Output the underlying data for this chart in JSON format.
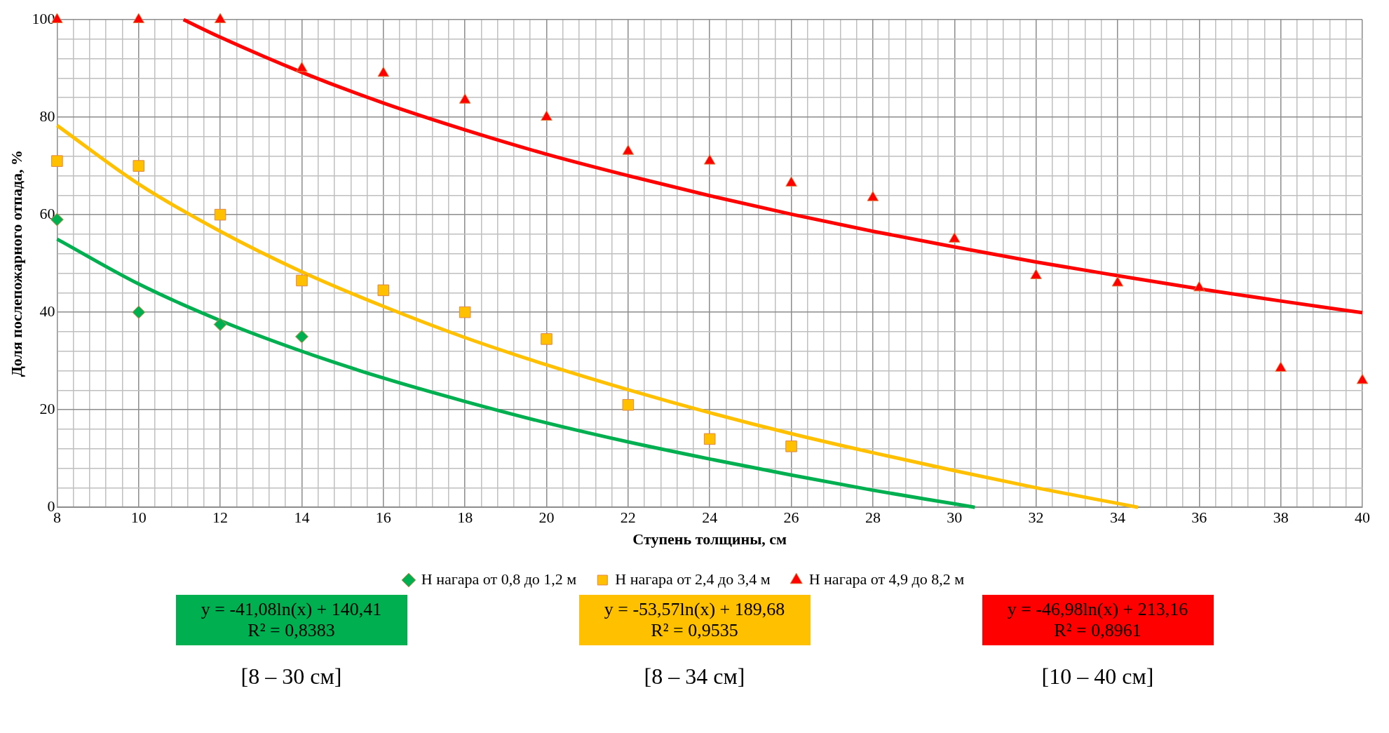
{
  "chart_data": {
    "type": "scatter",
    "xlabel": "Ступень толщины, см",
    "ylabel": "Доля послепожарного отпада, %",
    "xlim": [
      8,
      40
    ],
    "ylim": [
      0,
      100
    ],
    "xticks": [
      8,
      {
        "value": 8.4,
        "label": null
      },
      {
        "value": 8.8,
        "label": null
      },
      {
        "value": 9.2,
        "label": null
      },
      {
        "value": 9.6,
        "label": null
      },
      10,
      {
        "value": 10.4,
        "label": null
      },
      {
        "value": 10.8,
        "label": null
      },
      {
        "value": 11.2,
        "label": null
      },
      {
        "value": 11.6,
        "label": null
      },
      12,
      {
        "value": 12.4,
        "label": null
      },
      {
        "value": 12.8,
        "label": null
      },
      {
        "value": 13.2,
        "label": null
      },
      {
        "value": 13.6,
        "label": null
      },
      14,
      {
        "value": 14.4,
        "label": null
      },
      {
        "value": 14.8,
        "label": null
      },
      {
        "value": 15.2,
        "label": null
      },
      {
        "value": 15.6,
        "label": null
      },
      16,
      {
        "value": 16.4,
        "label": null
      },
      {
        "value": 16.8,
        "label": null
      },
      {
        "value": 17.2,
        "label": null
      },
      {
        "value": 17.6,
        "label": null
      },
      18,
      {
        "value": 18.4,
        "label": null
      },
      {
        "value": 18.8,
        "label": null
      },
      {
        "value": 19.2,
        "label": null
      },
      {
        "value": 19.6,
        "label": null
      },
      20,
      {
        "value": 20.4,
        "label": null
      },
      {
        "value": 20.8,
        "label": null
      },
      {
        "value": 21.2,
        "label": null
      },
      {
        "value": 21.6,
        "label": null
      },
      22,
      {
        "value": 22.4,
        "label": null
      },
      {
        "value": 22.8,
        "label": null
      },
      {
        "value": 23.2,
        "label": null
      },
      {
        "value": 23.6,
        "label": null
      },
      24,
      {
        "value": 24.4,
        "label": null
      },
      {
        "value": 24.8,
        "label": null
      },
      {
        "value": 25.2,
        "label": null
      },
      {
        "value": 25.6,
        "label": null
      },
      26,
      {
        "value": 26.4,
        "label": null
      },
      {
        "value": 26.8,
        "label": null
      },
      {
        "value": 27.2,
        "label": null
      },
      {
        "value": 27.6,
        "label": null
      },
      28,
      {
        "value": 28.4,
        "label": null
      },
      {
        "value": 28.8,
        "label": null
      },
      {
        "value": 29.2,
        "label": null
      },
      {
        "value": 29.6,
        "label": null
      },
      30,
      {
        "value": 30.4,
        "label": null
      },
      {
        "value": 30.8,
        "label": null
      },
      {
        "value": 31.2,
        "label": null
      },
      {
        "value": 31.6,
        "label": null
      },
      32,
      {
        "value": 32.4,
        "label": null
      },
      {
        "value": 32.8,
        "label": null
      },
      {
        "value": 33.2,
        "label": null
      },
      {
        "value": 33.6,
        "label": null
      },
      34,
      {
        "value": 34.4,
        "label": null
      },
      {
        "value": 34.8,
        "label": null
      },
      {
        "value": 35.2,
        "label": null
      },
      {
        "value": 35.6,
        "label": null
      },
      36,
      {
        "value": 36.4,
        "label": null
      },
      {
        "value": 36.8,
        "label": null
      },
      {
        "value": 37.2,
        "label": null
      },
      {
        "value": 37.6,
        "label": null
      },
      38,
      {
        "value": 38.4,
        "label": null
      },
      {
        "value": 38.8,
        "label": null
      },
      {
        "value": 39.2,
        "label": null
      },
      {
        "value": 39.6,
        "label": null
      },
      40
    ],
    "yticks": [
      0,
      {
        "value": 4,
        "label": null
      },
      {
        "value": 8,
        "label": null
      },
      {
        "value": 12,
        "label": null
      },
      {
        "value": 16,
        "label": null
      },
      20,
      {
        "value": 24,
        "label": null
      },
      {
        "value": 28,
        "label": null
      },
      {
        "value": 32,
        "label": null
      },
      {
        "value": 36,
        "label": null
      },
      40,
      {
        "value": 44,
        "label": null
      },
      {
        "value": 48,
        "label": null
      },
      {
        "value": 52,
        "label": null
      },
      {
        "value": 56,
        "label": null
      },
      60,
      {
        "value": 64,
        "label": null
      },
      {
        "value": 68,
        "label": null
      },
      {
        "value": 72,
        "label": null
      },
      {
        "value": 76,
        "label": null
      },
      80,
      {
        "value": 84,
        "label": null
      },
      {
        "value": 88,
        "label": null
      },
      {
        "value": 92,
        "label": null
      },
      {
        "value": 96,
        "label": null
      },
      100
    ],
    "grid": true,
    "legend": "bottom",
    "series": [
      {
        "name": "Н нагара от 0,8 до 1,2 м",
        "color": "#00b050",
        "marker": "diamond",
        "x": [
          8,
          10,
          12,
          14
        ],
        "values": [
          59,
          40,
          37.5,
          35
        ]
      },
      {
        "name": "Н нагара от 2,4 до 3,4 м",
        "color": "#ffc000",
        "marker": "square",
        "x": [
          8,
          10,
          12,
          14,
          16,
          18,
          20,
          22,
          24,
          26
        ],
        "values": [
          71,
          70,
          60,
          46.5,
          44.5,
          40,
          34.5,
          21,
          14,
          12.5
        ]
      },
      {
        "name": "Н нагара от 4,9 до 8,2 м",
        "color": "#ff0000",
        "marker": "triangle",
        "x": [
          8,
          10,
          12,
          14,
          16,
          18,
          20,
          22,
          24,
          26,
          28,
          30,
          32,
          34,
          36,
          38,
          40
        ],
        "values": [
          100,
          100,
          100,
          90,
          89,
          83.5,
          80,
          73,
          71,
          66.5,
          63.5,
          55,
          47.5,
          46,
          45,
          28.5,
          26
        ]
      },
      {
        "type": "line",
        "color": "#00b050",
        "marker": "none",
        "x": [
          8,
          10,
          12,
          14,
          16,
          18,
          20,
          22,
          24,
          26,
          28,
          30,
          30.5
        ],
        "values": [
          55,
          45.8,
          38.3,
          32,
          26.5,
          21.7,
          17.3,
          13.4,
          9.9,
          6.6,
          3.5,
          0.7,
          0
        ]
      },
      {
        "type": "line",
        "color": "#ffc000",
        "marker": "none",
        "x": [
          8,
          10,
          12,
          14,
          16,
          18,
          20,
          22,
          24,
          26,
          28,
          30,
          32,
          34,
          34.5
        ],
        "values": [
          78.3,
          66.3,
          56.6,
          48.3,
          41.2,
          34.8,
          29.2,
          24.1,
          19.4,
          15.1,
          11.2,
          7.5,
          4,
          0.8,
          0
        ]
      },
      {
        "type": "line",
        "color": "#ff0000",
        "marker": "none",
        "x": [
          11.1,
          12,
          14,
          16,
          18,
          20,
          22,
          24,
          26,
          28,
          30,
          32,
          34,
          36,
          38,
          40
        ],
        "values": [
          100,
          96.4,
          89.2,
          82.9,
          77.4,
          72.4,
          68,
          63.9,
          60.1,
          56.6,
          53.4,
          50.3,
          47.5,
          44.8,
          42.3,
          39.9
        ]
      }
    ],
    "annotations": [
      "y = -41,08ln(x) + 140,41\nR² = 0,8383",
      "y = -53,57ln(x) + 189,68\nR² = 0,9535",
      "y = -46,98ln(x) + 213,16\nR² = 0,8961",
      "[8 – 30 см]",
      "[8 – 34 см]",
      "[10 – 40 см]"
    ]
  }
}
